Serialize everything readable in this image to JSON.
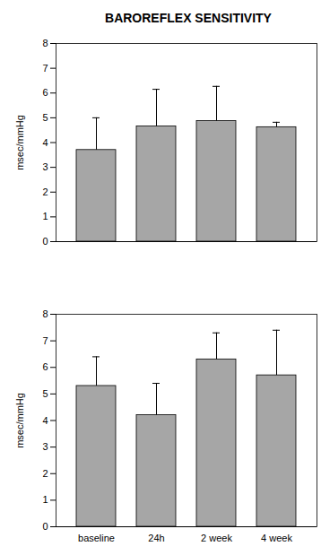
{
  "chart_data": [
    {
      "type": "bar",
      "title": "BAROREFLEX SENSITIVITY",
      "y_label": "msec/mmHg",
      "categories": [
        null,
        null,
        null,
        null
      ],
      "values": [
        3.7,
        4.65,
        4.87,
        4.62
      ],
      "errors": [
        1.3,
        1.5,
        1.4,
        0.2
      ],
      "color": "#a6a6a6",
      "ylim": [
        0,
        8
      ],
      "yticks": [
        0,
        1,
        2,
        3,
        4,
        5,
        6,
        7,
        8
      ],
      "tick_labels": "y"
    },
    {
      "type": "bar",
      "y_label": "msec/mmHg",
      "categories": [
        "baseline",
        "24h",
        "2 week",
        "4 week"
      ],
      "values": [
        5.3,
        4.2,
        6.3,
        5.7
      ],
      "errors": [
        1.1,
        1.2,
        1.0,
        1.7
      ],
      "color": "#a6a6a6",
      "ylim": [
        0,
        8
      ],
      "yticks": [
        0,
        1,
        2,
        3,
        4,
        5,
        6,
        7,
        8
      ]
    }
  ]
}
